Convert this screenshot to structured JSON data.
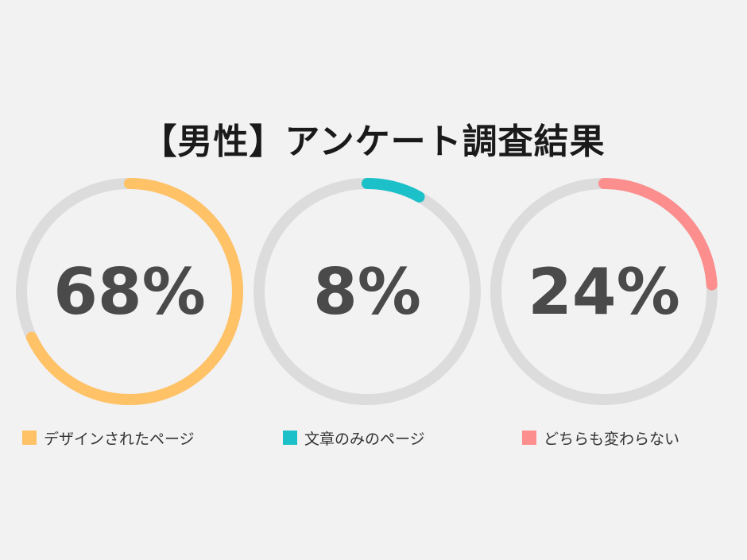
{
  "title": "【男性】アンケート調査結果",
  "chart_data": {
    "type": "donut",
    "title": "【男性】アンケート調査結果",
    "unit": "%",
    "track_color": "#dcdcdc",
    "label_color": "#4a4a4a",
    "series": [
      {
        "label": "68%",
        "value": 68,
        "name": "デザインされたページ",
        "color": "#ffc266"
      },
      {
        "label": "8%",
        "value": 8,
        "name": "文章のみのページ",
        "color": "#1bc0c8"
      },
      {
        "label": "24%",
        "value": 24,
        "name": "どちらも変わらない",
        "color": "#fc8e8e"
      }
    ]
  }
}
